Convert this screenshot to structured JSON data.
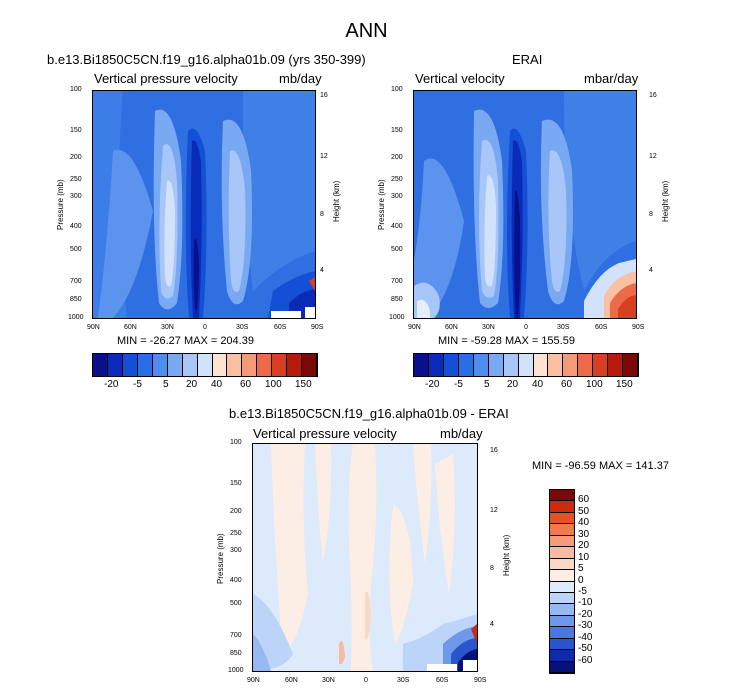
{
  "title": "ANN",
  "panels": [
    {
      "id": "model",
      "case_title": "b.e13.Bi1850C5CN.f19_g16.alpha01b.09 (yrs 350-399)",
      "left_title": "Vertical pressure velocity",
      "right_title": "mb/day",
      "ylabel": "Pressure (mb)",
      "y2label": "Height (km)",
      "min_max": "MIN = -26.27   MAX = 204.39"
    },
    {
      "id": "obs",
      "case_title": "ERAI",
      "left_title": "Vertical velocity",
      "right_title": "mbar/day",
      "ylabel": "Pressure (mb)",
      "y2label": "Height (km)",
      "min_max": "MIN = -59.28   MAX = 155.59"
    },
    {
      "id": "diff",
      "case_title": "b.e13.Bi1850C5CN.f19_g16.alpha01b.09 - ERAI",
      "left_title": "Vertical pressure velocity",
      "right_title": "mb/day",
      "ylabel": "Pressure (mb)",
      "y2label": "Height (km)",
      "min_max": "MIN = -96.59   MAX = 141.37"
    }
  ],
  "chart_data": [
    {
      "type": "heatmap",
      "title": "b.e13.Bi1850C5CN.f19_g16.alpha01b.09 (yrs 350-399)",
      "xlabel": "",
      "ylabel": "Pressure (mb)",
      "y2label": "Height (km)",
      "x_ticks": [
        "90N",
        "60N",
        "30N",
        "0",
        "30S",
        "60S",
        "90S"
      ],
      "y_ticks": [
        "100",
        "150",
        "200",
        "250",
        "300",
        "400",
        "500",
        "700",
        "850",
        "1000"
      ],
      "y2_ticks": [
        "16",
        "12",
        "8",
        "4"
      ],
      "xlim": [
        90,
        -90
      ],
      "ylim": [
        1000,
        100
      ],
      "y_scale": "log",
      "units": "mb/day",
      "min": -26.27,
      "max": 204.39,
      "colorbar_levels": [
        "-20",
        "-5",
        "5",
        "20",
        "40",
        "60",
        "100",
        "150"
      ]
    },
    {
      "type": "heatmap",
      "title": "ERAI",
      "xlabel": "",
      "ylabel": "Pressure (mb)",
      "y2label": "Height (km)",
      "x_ticks": [
        "90N",
        "60N",
        "30N",
        "0",
        "30S",
        "60S",
        "90S"
      ],
      "y_ticks": [
        "100",
        "150",
        "200",
        "250",
        "300",
        "400",
        "500",
        "700",
        "850",
        "1000"
      ],
      "y2_ticks": [
        "16",
        "12",
        "8",
        "4"
      ],
      "xlim": [
        90,
        -90
      ],
      "ylim": [
        1000,
        100
      ],
      "y_scale": "log",
      "units": "mbar/day",
      "min": -59.28,
      "max": 155.59,
      "colorbar_levels": [
        "-20",
        "-5",
        "5",
        "20",
        "40",
        "60",
        "100",
        "150"
      ]
    },
    {
      "type": "heatmap",
      "title": "b.e13.Bi1850C5CN.f19_g16.alpha01b.09 - ERAI",
      "xlabel": "",
      "ylabel": "Pressure (mb)",
      "y2label": "Height (km)",
      "x_ticks": [
        "90N",
        "60N",
        "30N",
        "0",
        "30S",
        "60S",
        "90S"
      ],
      "y_ticks": [
        "100",
        "150",
        "200",
        "250",
        "300",
        "400",
        "500",
        "700",
        "850",
        "1000"
      ],
      "y2_ticks": [
        "16",
        "12",
        "8",
        "4"
      ],
      "xlim": [
        90,
        -90
      ],
      "ylim": [
        1000,
        100
      ],
      "y_scale": "log",
      "units": "mb/day",
      "min": -96.59,
      "max": 141.37,
      "colorbar_levels": [
        "60",
        "50",
        "40",
        "30",
        "20",
        "10",
        "5",
        "0",
        "-5",
        "-10",
        "-20",
        "-30",
        "-40",
        "-50",
        "-60"
      ]
    }
  ],
  "colors": {
    "abs_scale": [
      "#08108c",
      "#0a2bb8",
      "#1450d6",
      "#2a6ee6",
      "#4e8cf0",
      "#7aa9f4",
      "#a8c7f8",
      "#d2e2fb",
      "#fde3d0",
      "#f9c0a2",
      "#f59977",
      "#ec6a48",
      "#d83f22",
      "#b51b0c",
      "#7d0606"
    ],
    "diff_scale": [
      "#7d0606",
      "#c92a10",
      "#e45325",
      "#ef7a4f",
      "#f49c78",
      "#f7bba0",
      "#fad8c4",
      "#fdeee5",
      "#ddeafb",
      "#bcd4f7",
      "#96b9f1",
      "#6e98ea",
      "#4a78e0",
      "#2a55cf",
      "#0c2cac",
      "#06127a"
    ]
  }
}
